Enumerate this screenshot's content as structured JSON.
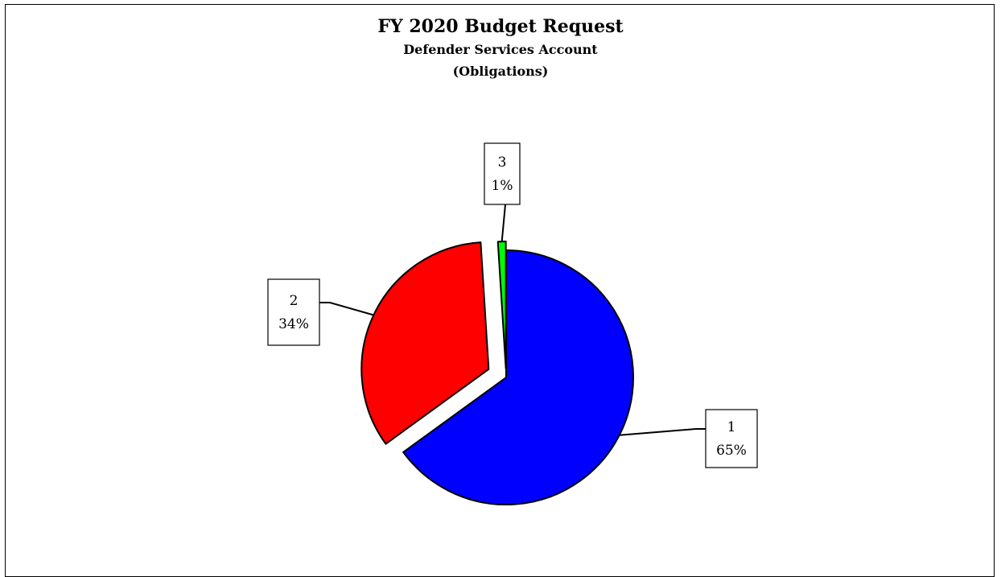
{
  "chart_data": {
    "type": "pie",
    "title": "FY 2020 Budget Request",
    "subtitle_1": "Defender Services Account",
    "subtitle_2": "(Obligations)",
    "slices": [
      {
        "name": "1",
        "percent_label": "65%",
        "value": 65,
        "color": "#0000ff"
      },
      {
        "name": "2",
        "percent_label": "34%",
        "value": 34,
        "color": "#ff0000"
      },
      {
        "name": "3",
        "percent_label": "1%",
        "value": 1,
        "color": "#00ff00"
      }
    ],
    "legend": "none",
    "exploded": true
  }
}
